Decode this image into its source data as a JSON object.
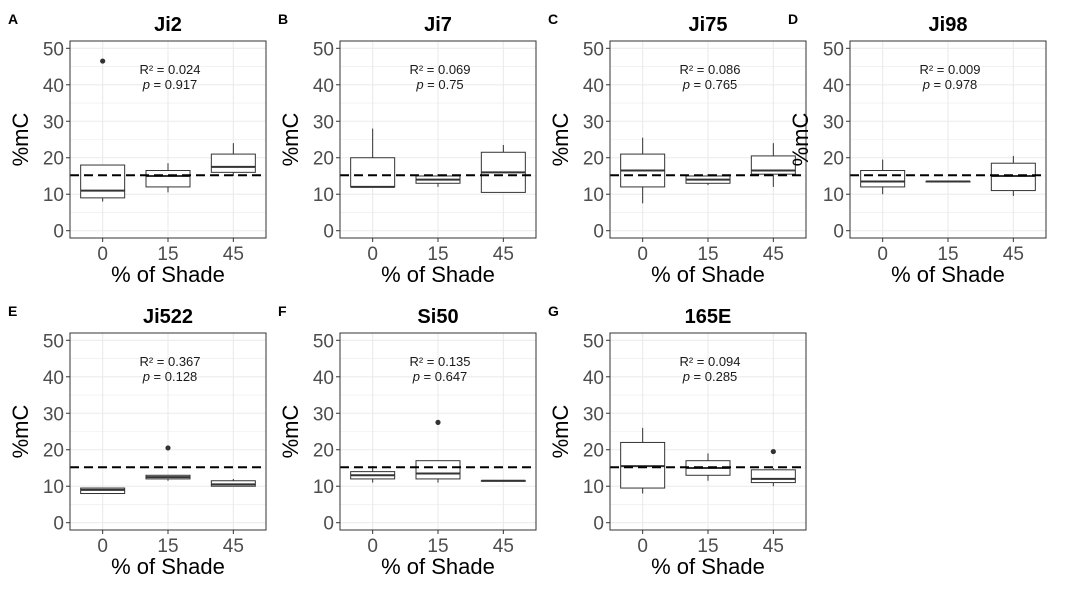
{
  "chart_data": [
    {
      "type": "box",
      "panel_label": "A",
      "title": "Ji2",
      "xlabel": "% of Shade",
      "ylabel": "%mC",
      "categories": [
        "0",
        "15",
        "45"
      ],
      "ylim": [
        -2,
        52
      ],
      "yticks": [
        0,
        10,
        20,
        30,
        40,
        50
      ],
      "reference_line": 15.2,
      "boxes": [
        {
          "category": "0",
          "whisker_low": 8,
          "q1": 9,
          "median": 11,
          "q3": 18,
          "whisker_high": 18,
          "outliers": [
            46.5
          ]
        },
        {
          "category": "15",
          "whisker_low": 10.5,
          "q1": 12,
          "median": 15,
          "q3": 16.5,
          "whisker_high": 18.5,
          "outliers": []
        },
        {
          "category": "45",
          "whisker_low": 15,
          "q1": 16,
          "median": 17.5,
          "q3": 21,
          "whisker_high": 24,
          "outliers": []
        }
      ],
      "r2_text": "R² = 0.024",
      "p_text": "= 0.917"
    },
    {
      "type": "box",
      "panel_label": "B",
      "title": "Ji7",
      "xlabel": "% of Shade",
      "ylabel": "%mC",
      "categories": [
        "0",
        "15",
        "45"
      ],
      "ylim": [
        -2,
        52
      ],
      "yticks": [
        0,
        10,
        20,
        30,
        40,
        50
      ],
      "reference_line": 15.2,
      "boxes": [
        {
          "category": "0",
          "whisker_low": 12,
          "q1": 12,
          "median": 12,
          "q3": 20,
          "whisker_high": 28,
          "outliers": []
        },
        {
          "category": "15",
          "whisker_low": 12,
          "q1": 13,
          "median": 14,
          "q3": 15,
          "whisker_high": 15.5,
          "outliers": []
        },
        {
          "category": "45",
          "whisker_low": 10.5,
          "q1": 10.5,
          "median": 16,
          "q3": 21.5,
          "whisker_high": 23.5,
          "outliers": []
        }
      ],
      "r2_text": "R² = 0.069",
      "p_text": "= 0.75"
    },
    {
      "type": "box",
      "panel_label": "C",
      "title": "Ji75",
      "xlabel": "% of Shade",
      "ylabel": "%mC",
      "categories": [
        "0",
        "15",
        "45"
      ],
      "ylim": [
        -2,
        52
      ],
      "yticks": [
        0,
        10,
        20,
        30,
        40,
        50
      ],
      "reference_line": 15.2,
      "boxes": [
        {
          "category": "0",
          "whisker_low": 7.5,
          "q1": 12,
          "median": 16.5,
          "q3": 21,
          "whisker_high": 25.5,
          "outliers": []
        },
        {
          "category": "15",
          "whisker_low": 12.5,
          "q1": 13,
          "median": 14,
          "q3": 15,
          "whisker_high": 15.5,
          "outliers": []
        },
        {
          "category": "45",
          "whisker_low": 12,
          "q1": 15.5,
          "median": 16.5,
          "q3": 20.5,
          "whisker_high": 24,
          "outliers": []
        }
      ],
      "r2_text": "R² = 0.086",
      "p_text": "= 0.765"
    },
    {
      "type": "box",
      "panel_label": "D",
      "title": "Ji98",
      "xlabel": "% of Shade",
      "ylabel": "%mC",
      "categories": [
        "0",
        "15",
        "45"
      ],
      "ylim": [
        -2,
        52
      ],
      "yticks": [
        0,
        10,
        20,
        30,
        40,
        50
      ],
      "reference_line": 15.2,
      "boxes": [
        {
          "category": "0",
          "whisker_low": 10,
          "q1": 12,
          "median": 13.5,
          "q3": 16.5,
          "whisker_high": 19.5,
          "outliers": []
        },
        {
          "category": "15",
          "whisker_low": 13.5,
          "q1": 13.5,
          "median": 13.5,
          "q3": 13.5,
          "whisker_high": 13.5,
          "outliers": []
        },
        {
          "category": "45",
          "whisker_low": 9.5,
          "q1": 11,
          "median": 15,
          "q3": 18.5,
          "whisker_high": 20.5,
          "outliers": []
        }
      ],
      "r2_text": "R² = 0.009",
      "p_text": "= 0.978"
    },
    {
      "type": "box",
      "panel_label": "E",
      "title": "Ji522",
      "xlabel": "% of Shade",
      "ylabel": "%mC",
      "categories": [
        "0",
        "15",
        "45"
      ],
      "ylim": [
        -2,
        52
      ],
      "yticks": [
        0,
        10,
        20,
        30,
        40,
        50
      ],
      "reference_line": 15.2,
      "boxes": [
        {
          "category": "0",
          "whisker_low": 8,
          "q1": 8,
          "median": 9,
          "q3": 9.5,
          "whisker_high": 9.5,
          "outliers": []
        },
        {
          "category": "15",
          "whisker_low": 11.5,
          "q1": 12,
          "median": 12.5,
          "q3": 13,
          "whisker_high": 13,
          "outliers": [
            20.5
          ]
        },
        {
          "category": "45",
          "whisker_low": 10,
          "q1": 10,
          "median": 10.5,
          "q3": 11.5,
          "whisker_high": 12,
          "outliers": []
        }
      ],
      "r2_text": "R² = 0.367",
      "p_text": "= 0.128"
    },
    {
      "type": "box",
      "panel_label": "F",
      "title": "Si50",
      "xlabel": "% of Shade",
      "ylabel": "%mC",
      "categories": [
        "0",
        "15",
        "45"
      ],
      "ylim": [
        -2,
        52
      ],
      "yticks": [
        0,
        10,
        20,
        30,
        40,
        50
      ],
      "reference_line": 15.2,
      "boxes": [
        {
          "category": "0",
          "whisker_low": 11,
          "q1": 12,
          "median": 13,
          "q3": 14,
          "whisker_high": 15.5,
          "outliers": []
        },
        {
          "category": "15",
          "whisker_low": 11,
          "q1": 12,
          "median": 13.5,
          "q3": 17,
          "whisker_high": 17,
          "outliers": [
            27.5
          ]
        },
        {
          "category": "45",
          "whisker_low": 11.5,
          "q1": 11.5,
          "median": 11.5,
          "q3": 11.5,
          "whisker_high": 11.5,
          "outliers": []
        }
      ],
      "r2_text": "R² = 0.135",
      "p_text": "= 0.647"
    },
    {
      "type": "box",
      "panel_label": "G",
      "title": "165E",
      "xlabel": "% of Shade",
      "ylabel": "%mC",
      "categories": [
        "0",
        "15",
        "45"
      ],
      "ylim": [
        -2,
        52
      ],
      "yticks": [
        0,
        10,
        20,
        30,
        40,
        50
      ],
      "reference_line": 15.2,
      "boxes": [
        {
          "category": "0",
          "whisker_low": 8,
          "q1": 9.5,
          "median": 15.5,
          "q3": 22,
          "whisker_high": 26,
          "outliers": []
        },
        {
          "category": "15",
          "whisker_low": 11.5,
          "q1": 13,
          "median": 15,
          "q3": 17,
          "whisker_high": 19,
          "outliers": []
        },
        {
          "category": "45",
          "whisker_low": 10,
          "q1": 11,
          "median": 12,
          "q3": 14.5,
          "whisker_high": 15,
          "outliers": [
            19.5
          ]
        }
      ],
      "r2_text": "R² = 0.094",
      "p_text": "= 0.285"
    }
  ],
  "p_symbol": "p",
  "colors": {
    "background": "#ffffff",
    "panel_border": "#333333",
    "grid": "#ebebeb",
    "box_stroke": "#333333",
    "reference_line": "#000000",
    "axis_text": "#4d4d4d",
    "title_text": "#000000"
  }
}
